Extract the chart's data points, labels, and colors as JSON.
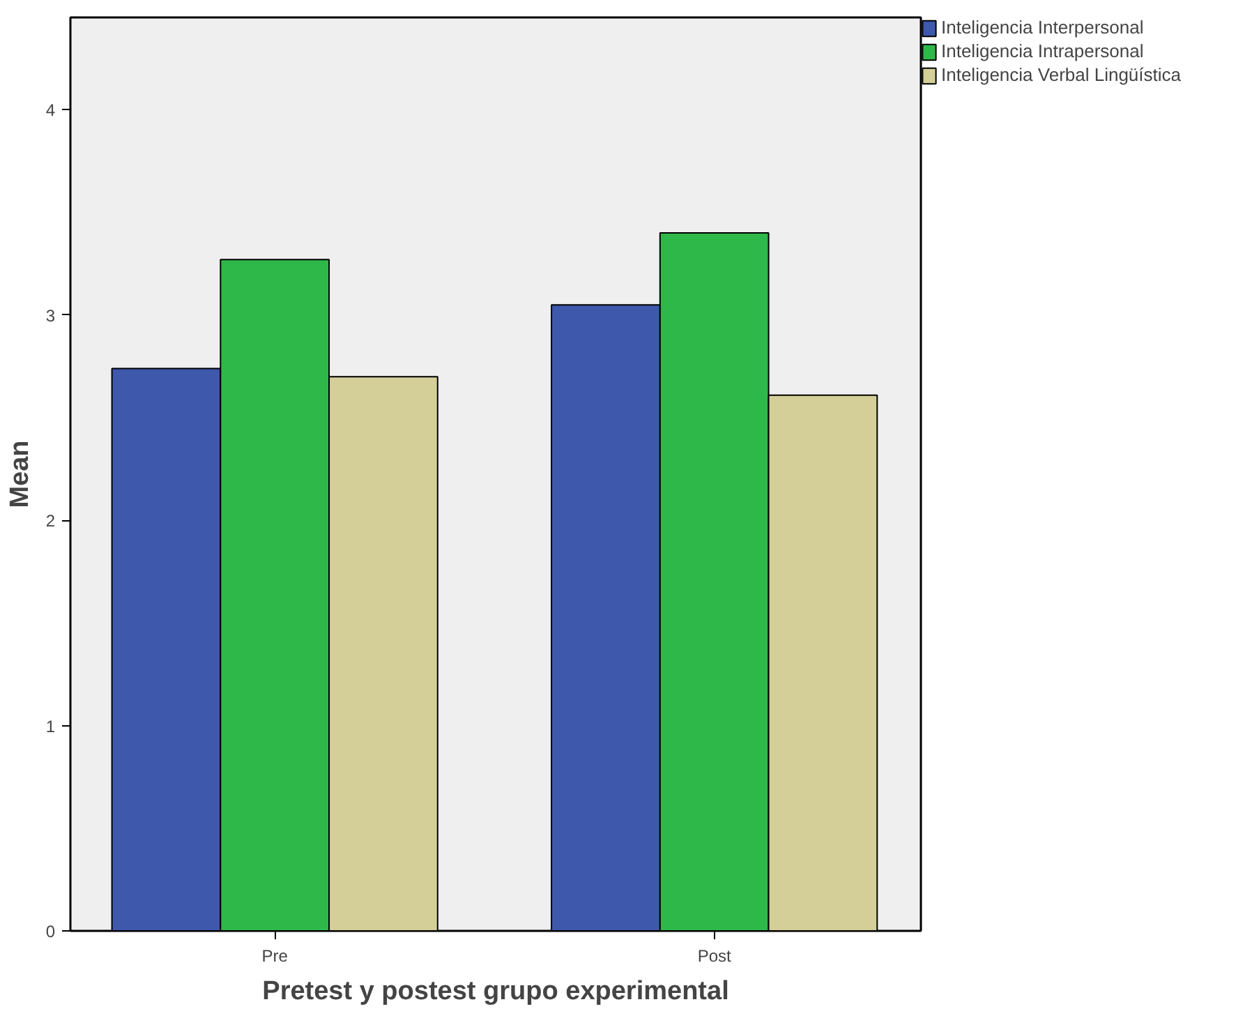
{
  "chart_data": {
    "type": "bar",
    "xlabel": "Pretest y postest grupo experimental",
    "ylabel": "Mean",
    "categories": [
      "Pre",
      "Post"
    ],
    "series": [
      {
        "name": "Inteligencia Interpersonal",
        "color": "#3e58ab",
        "values": [
          2.74,
          3.05
        ]
      },
      {
        "name": "Inteligencia Intrapersonal",
        "color": "#2fb84a",
        "values": [
          3.27,
          3.4
        ]
      },
      {
        "name": "Inteligencia Verbal Lingüística",
        "color": "#d4cf98",
        "values": [
          2.7,
          2.61
        ]
      }
    ],
    "ylim": [
      0,
      4.45
    ],
    "yticks": [
      0,
      1,
      2,
      3,
      4
    ],
    "grid": false,
    "legend": "top right"
  }
}
